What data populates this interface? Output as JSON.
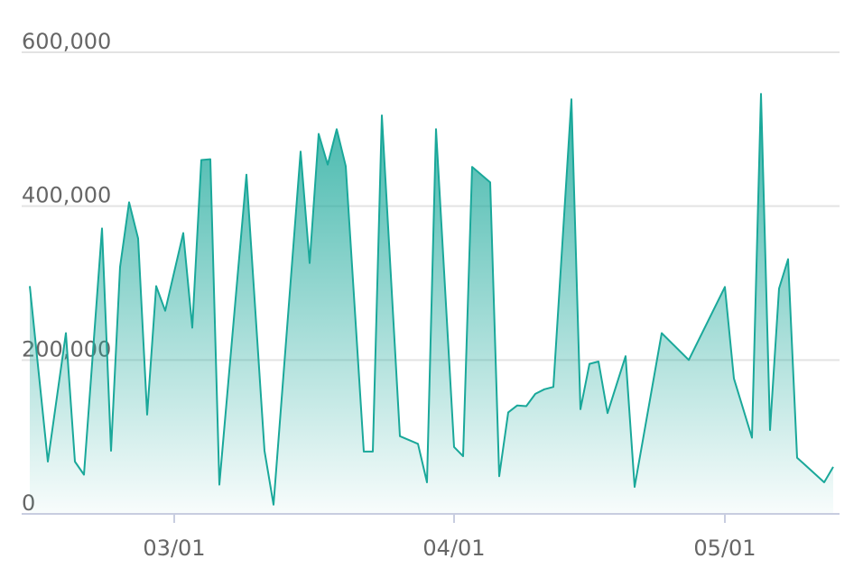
{
  "chart_data": {
    "type": "area",
    "x": [
      "02/14",
      "02/16",
      "02/18",
      "02/19",
      "02/20",
      "02/22",
      "02/23",
      "02/24",
      "02/25",
      "02/26",
      "02/27",
      "02/28",
      "02/29",
      "03/02",
      "03/03",
      "03/04",
      "03/05",
      "03/06",
      "03/09",
      "03/11",
      "03/12",
      "03/15",
      "03/16",
      "03/17",
      "03/18",
      "03/19",
      "03/20",
      "03/22",
      "03/23",
      "03/24",
      "03/26",
      "03/28",
      "03/29",
      "03/30",
      "04/01",
      "04/02",
      "04/03",
      "04/05",
      "04/06",
      "04/07",
      "04/08",
      "04/09",
      "04/10",
      "04/11",
      "04/12",
      "04/14",
      "04/15",
      "04/16",
      "04/17",
      "04/18",
      "04/20",
      "04/21",
      "04/24",
      "04/27",
      "05/01",
      "05/02",
      "05/04",
      "05/05",
      "05/06",
      "05/07",
      "05/08",
      "05/09",
      "05/12",
      "05/13"
    ],
    "values": [
      296000,
      68000,
      235000,
      68000,
      51000,
      371000,
      82000,
      321000,
      405000,
      358000,
      129000,
      296000,
      264000,
      365000,
      242000,
      460000,
      461000,
      38000,
      441000,
      82000,
      12000,
      471000,
      326000,
      494000,
      454000,
      500000,
      452000,
      81000,
      81000,
      518000,
      101000,
      91000,
      41000,
      500000,
      87000,
      75000,
      451000,
      431000,
      49000,
      132000,
      141000,
      140000,
      156000,
      162000,
      165000,
      539000,
      136000,
      195000,
      198000,
      131000,
      205000,
      35000,
      235000,
      200000,
      295000,
      176000,
      99000,
      546000,
      109000,
      293000,
      331000,
      73000,
      41000,
      61000
    ],
    "color": "#1aa89a",
    "ylim": [
      0,
      600000
    ],
    "yticks": [
      0,
      {
        "value": 200000,
        "label": "200,000"
      },
      {
        "value": 400000,
        "label": "400,000"
      },
      {
        "value": 600000,
        "label": "600,000"
      }
    ],
    "xticks": [
      "03/01",
      "04/01",
      "05/01"
    ],
    "grid": true
  }
}
